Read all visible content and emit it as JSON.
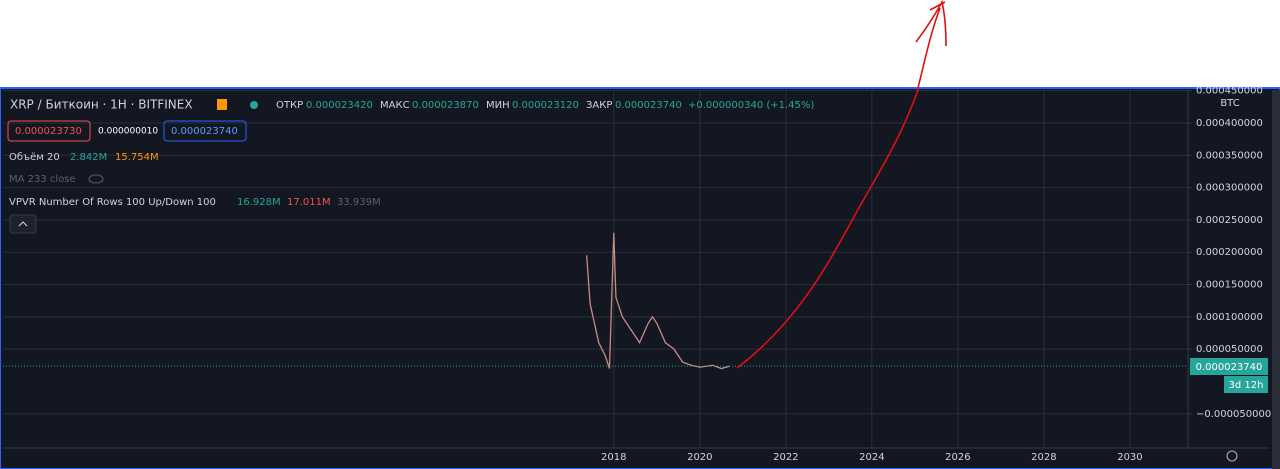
{
  "header": {
    "symbol": "XRP / Биткоин · 1H · BITFINEX",
    "open_label": "ОТКР",
    "open": "0.000023420",
    "high_label": "МАКС",
    "high": "0.000023870",
    "low_label": "МИН",
    "low": "0.000023120",
    "close_label": "ЗАКР",
    "close": "0.000023740",
    "change": "+0.000000340 (+1.45%)",
    "bid": "0.000023730",
    "spread": "0.000000010",
    "ask": "0.000023740"
  },
  "indicators": {
    "volume_name": "Объём 20",
    "volume_up": "2.842M",
    "volume_ma": "15.754M",
    "ma_name": "MA 233 close",
    "vpvr_name": "VPVR Number Of Rows 100 Up/Down 100",
    "vpvr_up": "16.928M",
    "vpvr_down": "17.011M",
    "vpvr_total": "33.939M"
  },
  "axis": {
    "currency": "BTC",
    "price_label": "0.000023740",
    "countdown": "3d 12h"
  },
  "chart_data": {
    "type": "line",
    "x": [
      2017.37,
      2017.45,
      2017.55,
      2017.65,
      2017.8,
      2017.9,
      2018.0,
      2018.05,
      2018.2,
      2018.4,
      2018.6,
      2018.8,
      2018.9,
      2019.0,
      2019.2,
      2019.4,
      2019.6,
      2019.8,
      2020.0,
      2020.3,
      2020.5,
      2020.7
    ],
    "series": [
      {
        "color": "#c98a84",
        "values": [
          0.000195,
          0.00012,
          9e-05,
          6e-05,
          4e-05,
          2e-05,
          0.00023,
          0.00013,
          0.0001,
          8e-05,
          6e-05,
          9e-05,
          0.0001,
          9e-05,
          6e-05,
          5e-05,
          3e-05,
          2.5e-05,
          2.2e-05,
          2.5e-05,
          2e-05,
          2.37e-05
        ]
      }
    ],
    "xlim": [
      2003.8,
      2031.35
    ],
    "xticks": [
      2018,
      2020,
      2022,
      2024,
      2026,
      2028,
      2030
    ],
    "ylim": [
      -0.000103,
      0.000451
    ],
    "yticks": [
      {
        "value": -5e-05,
        "label": "−0.000050000"
      },
      {
        "value": 5e-05,
        "label": "0.000050000"
      },
      {
        "value": 0.0001,
        "label": "0.000100000"
      },
      {
        "value": 0.00015,
        "label": "0.000150000"
      },
      {
        "value": 0.0002,
        "label": "0.000200000"
      },
      {
        "value": 0.00025,
        "label": "0.000250000"
      },
      {
        "value": 0.0003,
        "label": "0.000300000"
      },
      {
        "value": 0.00035,
        "label": "0.000350000"
      },
      {
        "value": 0.0004,
        "label": "0.000400000"
      },
      {
        "value": 0.00045,
        "label": "0.000450000"
      }
    ],
    "grid": true
  }
}
